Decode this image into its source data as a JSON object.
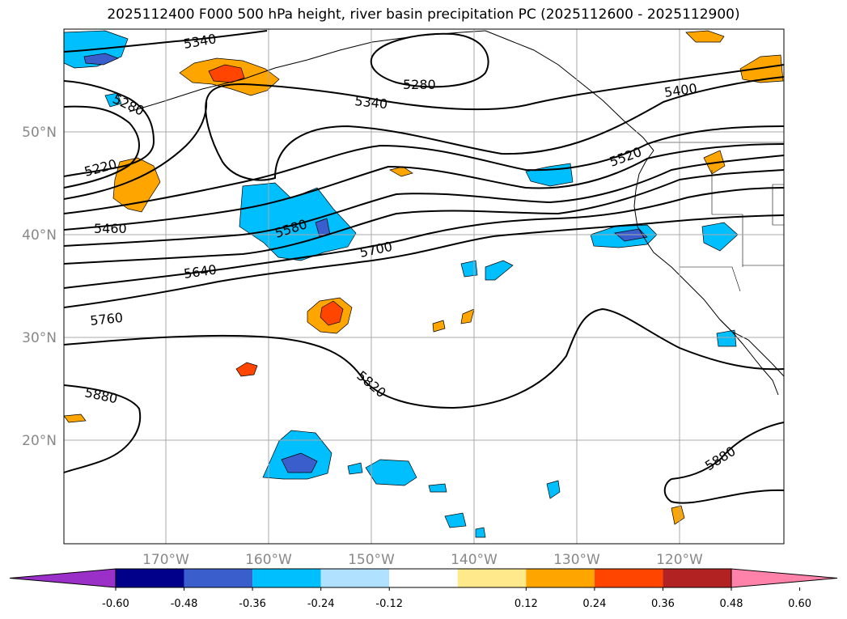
{
  "title": "2025112400 F000 500 hPa height, river basin precipitation PC (2025112600 - 2025112900)",
  "lat_labels": [
    "50°N",
    "40°N",
    "30°N",
    "20°N"
  ],
  "lon_labels": [
    "170°W",
    "160°W",
    "150°W",
    "140°W",
    "130°W",
    "120°W"
  ],
  "contour_labels": [
    "5340",
    "5280",
    "5340",
    "5280",
    "5400",
    "5220",
    "5520",
    "5460",
    "5580",
    "5700",
    "5640",
    "5760",
    "5820",
    "5880",
    "5880"
  ],
  "colorbar": {
    "ticks": [
      "-0.60",
      "-0.48",
      "-0.36",
      "-0.24",
      "-0.12",
      "0.12",
      "0.24",
      "0.36",
      "0.48",
      "0.60"
    ],
    "colors": [
      "#9b30c9",
      "#00008b",
      "#3a5fcd",
      "#00bfff",
      "#b0e2ff",
      "#ffffff",
      "#ffe98a",
      "#ffa500",
      "#ff4500",
      "#b22222",
      "#ff82ab"
    ]
  },
  "colors": {
    "ocean": "#ffffff",
    "contour": "#000000",
    "grid": "#aaaaaa"
  }
}
